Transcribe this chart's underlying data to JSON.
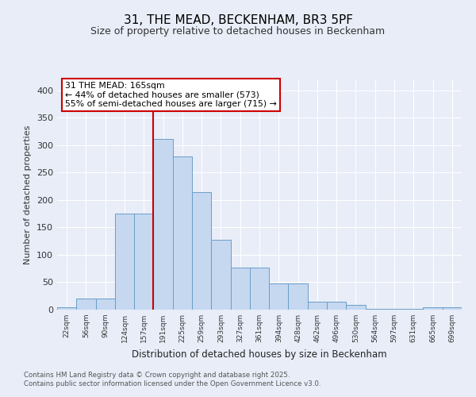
{
  "title": "31, THE MEAD, BECKENHAM, BR3 5PF",
  "subtitle": "Size of property relative to detached houses in Beckenham",
  "xlabel": "Distribution of detached houses by size in Beckenham",
  "ylabel": "Number of detached properties",
  "bar_color": "#c5d8f0",
  "bar_edge_color": "#6b9ec8",
  "bg_color": "#e8edf8",
  "fig_color": "#e8edf8",
  "grid_color": "#ffffff",
  "categories": [
    "22sqm",
    "56sqm",
    "90sqm",
    "124sqm",
    "157sqm",
    "191sqm",
    "225sqm",
    "259sqm",
    "293sqm",
    "327sqm",
    "361sqm",
    "394sqm",
    "428sqm",
    "462sqm",
    "496sqm",
    "530sqm",
    "564sqm",
    "597sqm",
    "631sqm",
    "665sqm",
    "699sqm"
  ],
  "bar_heights": [
    5,
    20,
    20,
    175,
    175,
    311,
    280,
    215,
    127,
    77,
    77,
    48,
    48,
    14,
    14,
    9,
    2,
    2,
    2,
    4,
    4
  ],
  "vline_color": "#cc0000",
  "vline_x": 4.5,
  "annotation_text": "31 THE MEAD: 165sqm\n← 44% of detached houses are smaller (573)\n55% of semi-detached houses are larger (715) →",
  "ylim": [
    0,
    420
  ],
  "yticks": [
    0,
    50,
    100,
    150,
    200,
    250,
    300,
    350,
    400
  ],
  "footer": "Contains HM Land Registry data © Crown copyright and database right 2025.\nContains public sector information licensed under the Open Government Licence v3.0."
}
